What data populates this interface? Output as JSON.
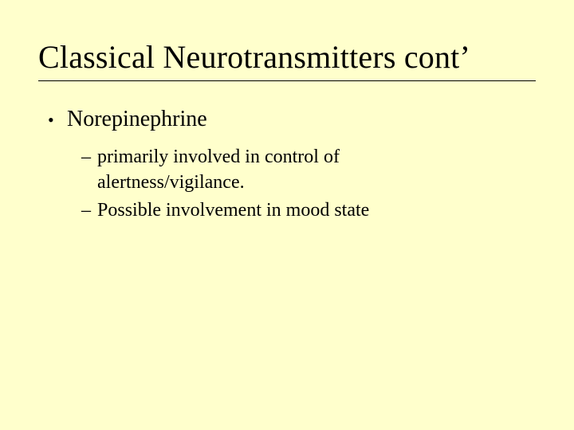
{
  "background_color": "#ffffcc",
  "text_color": "#000000",
  "title_underline_color": "#000000",
  "font_family": "Times New Roman",
  "title": {
    "text": "Classical  Neurotransmitters cont’",
    "fontsize": 40
  },
  "bullets": {
    "level1_fontsize": 28,
    "level2_fontsize": 24,
    "level1_marker": "•",
    "level2_marker": "–",
    "items": [
      {
        "text": "Norepinephrine",
        "subitems": [
          {
            "text": "primarily involved in control of alertness/vigilance."
          },
          {
            "text": "Possible involvement in mood state"
          }
        ]
      }
    ]
  }
}
